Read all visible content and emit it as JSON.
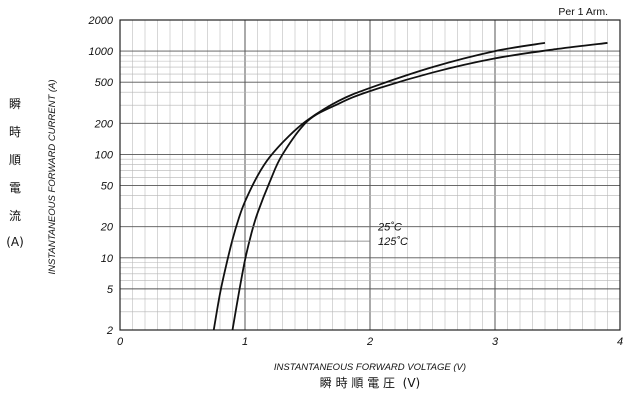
{
  "chart_data": {
    "type": "line",
    "note": "Per 1 Arm.",
    "xlabel": "INSTANTANEOUS FORWARD VOLTAGE (V)",
    "xlabel_jp": "瞬 時 順 電 圧  (V)",
    "ylabel": "INSTANTANEOUS FORWARD CURRENT (A)",
    "ylabel_jp": [
      "瞬",
      "時",
      "順",
      "電",
      "流",
      "(A)"
    ],
    "xlim": [
      0,
      4
    ],
    "ylim": [
      2,
      2000
    ],
    "yscale": "log",
    "x_ticks": [
      "0",
      "1",
      "2",
      "3",
      "4"
    ],
    "y_ticks": [
      "2",
      "5",
      "10",
      "20",
      "50",
      "100",
      "200",
      "500",
      "1000",
      "2000"
    ],
    "grid": true,
    "series": [
      {
        "name": "25˚C",
        "x": [
          0.75,
          0.8,
          0.85,
          0.9,
          0.95,
          1.0,
          1.1,
          1.2,
          1.35,
          1.5,
          1.75,
          2.0,
          2.5,
          3.0,
          3.4
        ],
        "y": [
          2,
          4.5,
          8.5,
          15,
          24,
          35,
          62,
          95,
          150,
          215,
          330,
          440,
          700,
          1000,
          1200
        ]
      },
      {
        "name": "125˚C",
        "x": [
          0.9,
          0.95,
          1.0,
          1.05,
          1.1,
          1.2,
          1.3,
          1.5,
          1.75,
          2.0,
          2.5,
          3.0,
          3.5,
          3.9
        ],
        "y": [
          2,
          4.5,
          9.5,
          17,
          27,
          55,
          100,
          210,
          310,
          410,
          620,
          850,
          1050,
          1200
        ]
      }
    ],
    "annotations": [
      {
        "text": "25˚C",
        "series": "25˚C",
        "at": [
          1.0,
          20
        ]
      },
      {
        "text": "125˚C",
        "series": "125˚C",
        "at": [
          0.9,
          14.5
        ]
      }
    ]
  }
}
